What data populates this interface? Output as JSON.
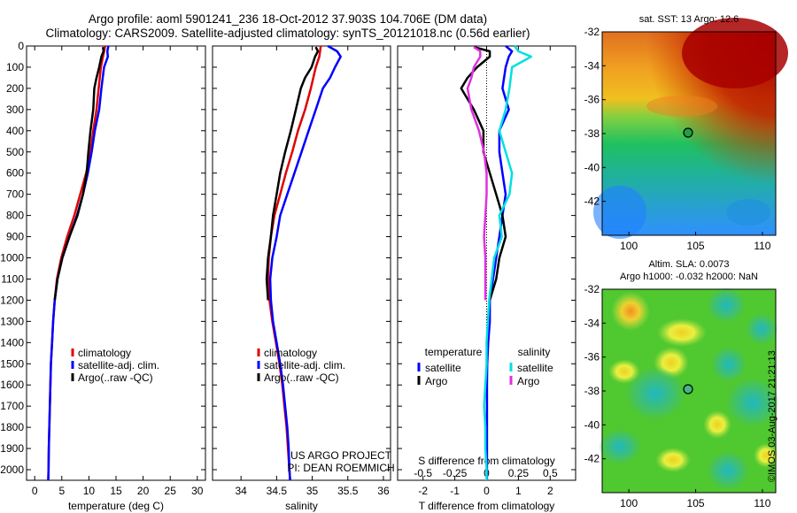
{
  "title_line1": "Argo profile: aoml 5901241_236 18-Oct-2012 37.903S 104.706E (DM data)",
  "title_line2": "Climatology: CARS2009. Satellite-adjusted climatology: synTS_20121018.nc (0.56d earlier)",
  "sst_label": "sat. SST: 13 Argo: 12.6",
  "sla_label1": "Altim. SLA: 0.0073",
  "sla_label2": "Argo h1000: -0.032 h2000: NaN",
  "project_line1": "US ARGO PROJECT",
  "project_line2": "PI: DEAN ROEMMICH",
  "copyright": "©IMOS 03-Aug-2017 21:21:13",
  "colors": {
    "climatology": "#e00000",
    "satellite": "#0000ff",
    "argo": "#000000",
    "satellite_s": "#00e0e0",
    "argo_s": "#e030e0"
  },
  "chart_data": [
    {
      "id": "temperature",
      "type": "line",
      "xlabel": "temperature (deg C)",
      "ylim": [
        2050,
        0
      ],
      "xlim": [
        -1.5,
        31.5
      ],
      "xticks": [
        0,
        5,
        10,
        15,
        20,
        25,
        30
      ],
      "yticks": [
        0,
        100,
        200,
        300,
        400,
        500,
        600,
        700,
        800,
        900,
        1000,
        1100,
        1200,
        1300,
        1400,
        1500,
        1600,
        1700,
        1800,
        1900,
        2000
      ],
      "legend": [
        "climatology",
        "satellite-adj. clim.",
        "Argo(..raw -QC)"
      ],
      "series": [
        {
          "name": "climatology",
          "color": "#e00000",
          "y": [
            0,
            50,
            100,
            200,
            300,
            400,
            500,
            600,
            700,
            800,
            900,
            1000,
            1100,
            1200,
            1300,
            1400,
            1500,
            1600,
            1700,
            1800,
            1900,
            2000,
            2050
          ],
          "x": [
            13.0,
            12.6,
            12.2,
            11.8,
            11.4,
            10.8,
            10.3,
            9.5,
            8.4,
            7.3,
            6.0,
            4.9,
            4.1,
            3.7,
            3.4,
            3.2,
            3.0,
            2.9,
            2.8,
            2.7,
            2.6,
            2.55,
            2.5
          ]
        },
        {
          "name": "satellite-adj. clim.",
          "color": "#0000ff",
          "y": [
            0,
            25,
            50,
            100,
            200,
            300,
            400,
            500,
            600,
            700,
            800,
            900,
            1000,
            1100,
            1200,
            1300,
            1400,
            1500,
            1600,
            1700,
            1800,
            1900,
            2000,
            2050
          ],
          "x": [
            13.6,
            13.4,
            13.5,
            12.8,
            12.3,
            11.9,
            11.1,
            10.5,
            9.8,
            8.9,
            7.8,
            6.4,
            5.1,
            4.2,
            3.7,
            3.4,
            3.2,
            3.0,
            2.9,
            2.8,
            2.7,
            2.6,
            2.55,
            2.5
          ]
        },
        {
          "name": "Argo(..raw -QC)",
          "color": "#000000",
          "y": [
            5,
            25,
            50,
            100,
            150,
            200,
            300,
            400,
            500,
            600,
            700,
            800,
            900,
            1000,
            1100,
            1200
          ],
          "x": [
            12.6,
            12.7,
            12.3,
            11.9,
            11.4,
            11.0,
            10.8,
            10.3,
            9.9,
            9.6,
            8.9,
            7.9,
            6.4,
            5.1,
            4.2,
            3.7
          ]
        }
      ]
    },
    {
      "id": "salinity",
      "type": "line",
      "xlabel": "salinity",
      "ylim": [
        2050,
        0
      ],
      "xlim": [
        33.6,
        36.1
      ],
      "xticks": [
        34,
        34.5,
        35,
        35.5,
        36
      ],
      "legend": [
        "climatology",
        "satellite-adj. clim.",
        "Argo(..raw -QC)"
      ],
      "series": [
        {
          "name": "climatology",
          "color": "#e00000",
          "y": [
            0,
            50,
            100,
            200,
            300,
            400,
            500,
            600,
            700,
            800,
            900,
            1000,
            1100,
            1200,
            1300,
            1400,
            1500,
            1600,
            1700,
            1800,
            1900,
            2000,
            2050
          ],
          "x": [
            35.12,
            35.1,
            35.05,
            34.98,
            34.9,
            34.8,
            34.72,
            34.63,
            34.55,
            34.47,
            34.42,
            34.39,
            34.38,
            34.4,
            34.44,
            34.49,
            34.54,
            34.58,
            34.61,
            34.64,
            34.66,
            34.68,
            34.69
          ]
        },
        {
          "name": "satellite-adj. clim.",
          "color": "#0000ff",
          "y": [
            0,
            25,
            50,
            100,
            150,
            200,
            300,
            400,
            500,
            600,
            700,
            800,
            900,
            1000,
            1100,
            1200,
            1300,
            1400,
            1500,
            1600,
            1700,
            1800,
            1900,
            2000,
            2050
          ],
          "x": [
            35.22,
            35.35,
            35.4,
            35.32,
            35.25,
            35.15,
            35.05,
            34.95,
            34.85,
            34.75,
            34.65,
            34.55,
            34.5,
            34.44,
            34.41,
            34.42,
            34.45,
            34.5,
            34.55,
            34.59,
            34.62,
            34.65,
            34.67,
            34.68,
            34.69
          ]
        },
        {
          "name": "Argo(..raw -QC)",
          "color": "#000000",
          "y": [
            5,
            25,
            50,
            100,
            150,
            200,
            300,
            400,
            500,
            600,
            700,
            800,
            900,
            1000,
            1100,
            1200
          ],
          "x": [
            35.05,
            35.08,
            35.04,
            34.99,
            34.9,
            34.84,
            34.77,
            34.7,
            34.62,
            34.55,
            34.5,
            34.45,
            34.42,
            34.38,
            34.36,
            34.38
          ]
        }
      ]
    },
    {
      "id": "differences",
      "type": "line",
      "xlabel": "T difference from climatology",
      "x2label": "S difference from climatology",
      "ylim": [
        2050,
        0
      ],
      "xlim": [
        -2.8,
        2.8
      ],
      "xticks": [
        -2,
        -1,
        0,
        1,
        2
      ],
      "x2ticks": [
        -0.5,
        -0.25,
        0,
        0.25,
        0.5
      ],
      "x2ticklabels": [
        "-0.5",
        "-0.25",
        "0",
        "0.25",
        "0.5"
      ],
      "legend_titles": [
        "temperature",
        "salinity"
      ],
      "legend": [
        "satellite",
        "Argo",
        "satellite",
        "Argo"
      ],
      "series": [
        {
          "name": "satellite",
          "group": "temperature",
          "color": "#0000ff",
          "y": [
            0,
            25,
            50,
            100,
            200,
            300,
            400,
            500,
            600,
            700,
            800,
            900,
            1000,
            1100,
            1200,
            1300,
            1400,
            1500,
            1600,
            1700,
            1800,
            1900,
            2000,
            2050
          ],
          "x": [
            0.6,
            0.8,
            0.7,
            0.6,
            0.5,
            0.7,
            0.4,
            0.4,
            0.5,
            0.6,
            0.5,
            0.4,
            0.3,
            0.2,
            0.1,
            0.1,
            0.05,
            0.02,
            0.01,
            0.01,
            0.01,
            0.01,
            0.01,
            0.01
          ]
        },
        {
          "name": "Argo",
          "group": "temperature",
          "color": "#000000",
          "y": [
            5,
            25,
            50,
            100,
            150,
            200,
            300,
            400,
            500,
            600,
            700,
            800,
            900,
            1000,
            1100,
            1200
          ],
          "x": [
            -0.4,
            0.1,
            0.1,
            -0.3,
            -0.6,
            -0.8,
            -0.4,
            -0.1,
            -0.1,
            0.1,
            0.3,
            0.5,
            0.6,
            0.4,
            0.3,
            0.1
          ]
        },
        {
          "name": "satellite",
          "group": "salinity",
          "color": "#00e0e0",
          "y": [
            0,
            25,
            50,
            100,
            200,
            300,
            400,
            500,
            600,
            700,
            800,
            900,
            1000,
            1100,
            1200,
            1300,
            1400,
            1500,
            1600,
            1700,
            1800,
            1900,
            2000,
            2050
          ],
          "x": [
            0.22,
            0.25,
            0.35,
            0.2,
            0.18,
            0.15,
            0.1,
            0.15,
            0.2,
            0.18,
            0.1,
            0.12,
            0.06,
            0.04,
            0.02,
            0.01,
            0.0,
            0.0,
            -0.01,
            -0.02,
            -0.01,
            -0.01,
            0.0,
            0.0
          ]
        },
        {
          "name": "Argo",
          "group": "salinity",
          "color": "#e030e0",
          "y": [
            5,
            25,
            50,
            100,
            150,
            200,
            300,
            400,
            500,
            600,
            700,
            800,
            900,
            1000,
            1100,
            1200
          ],
          "x": [
            -0.1,
            -0.05,
            -0.05,
            -0.1,
            -0.12,
            -0.15,
            -0.12,
            -0.06,
            -0.02,
            0.0,
            0.0,
            -0.01,
            -0.02,
            -0.01,
            -0.01,
            -0.01
          ]
        }
      ]
    },
    {
      "id": "sst-map",
      "type": "heatmap",
      "title": "sat. SST: 13 Argo: 12.6",
      "xlim": [
        98,
        111
      ],
      "ylim": [
        -44,
        -32
      ],
      "xticks": [
        100,
        105,
        110
      ],
      "yticks": [
        -32,
        -34,
        -36,
        -38,
        -40,
        -42
      ],
      "profile_position": [
        104.706,
        -37.903
      ]
    },
    {
      "id": "sla-map",
      "type": "heatmap",
      "title": "Altim. SLA: 0.0073",
      "xlim": [
        98,
        111
      ],
      "ylim": [
        -44,
        -32
      ],
      "xticks": [
        100,
        105,
        110
      ],
      "yticks": [
        -32,
        -34,
        -36,
        -38,
        -40,
        -42
      ],
      "profile_position": [
        104.706,
        -37.903
      ]
    }
  ]
}
